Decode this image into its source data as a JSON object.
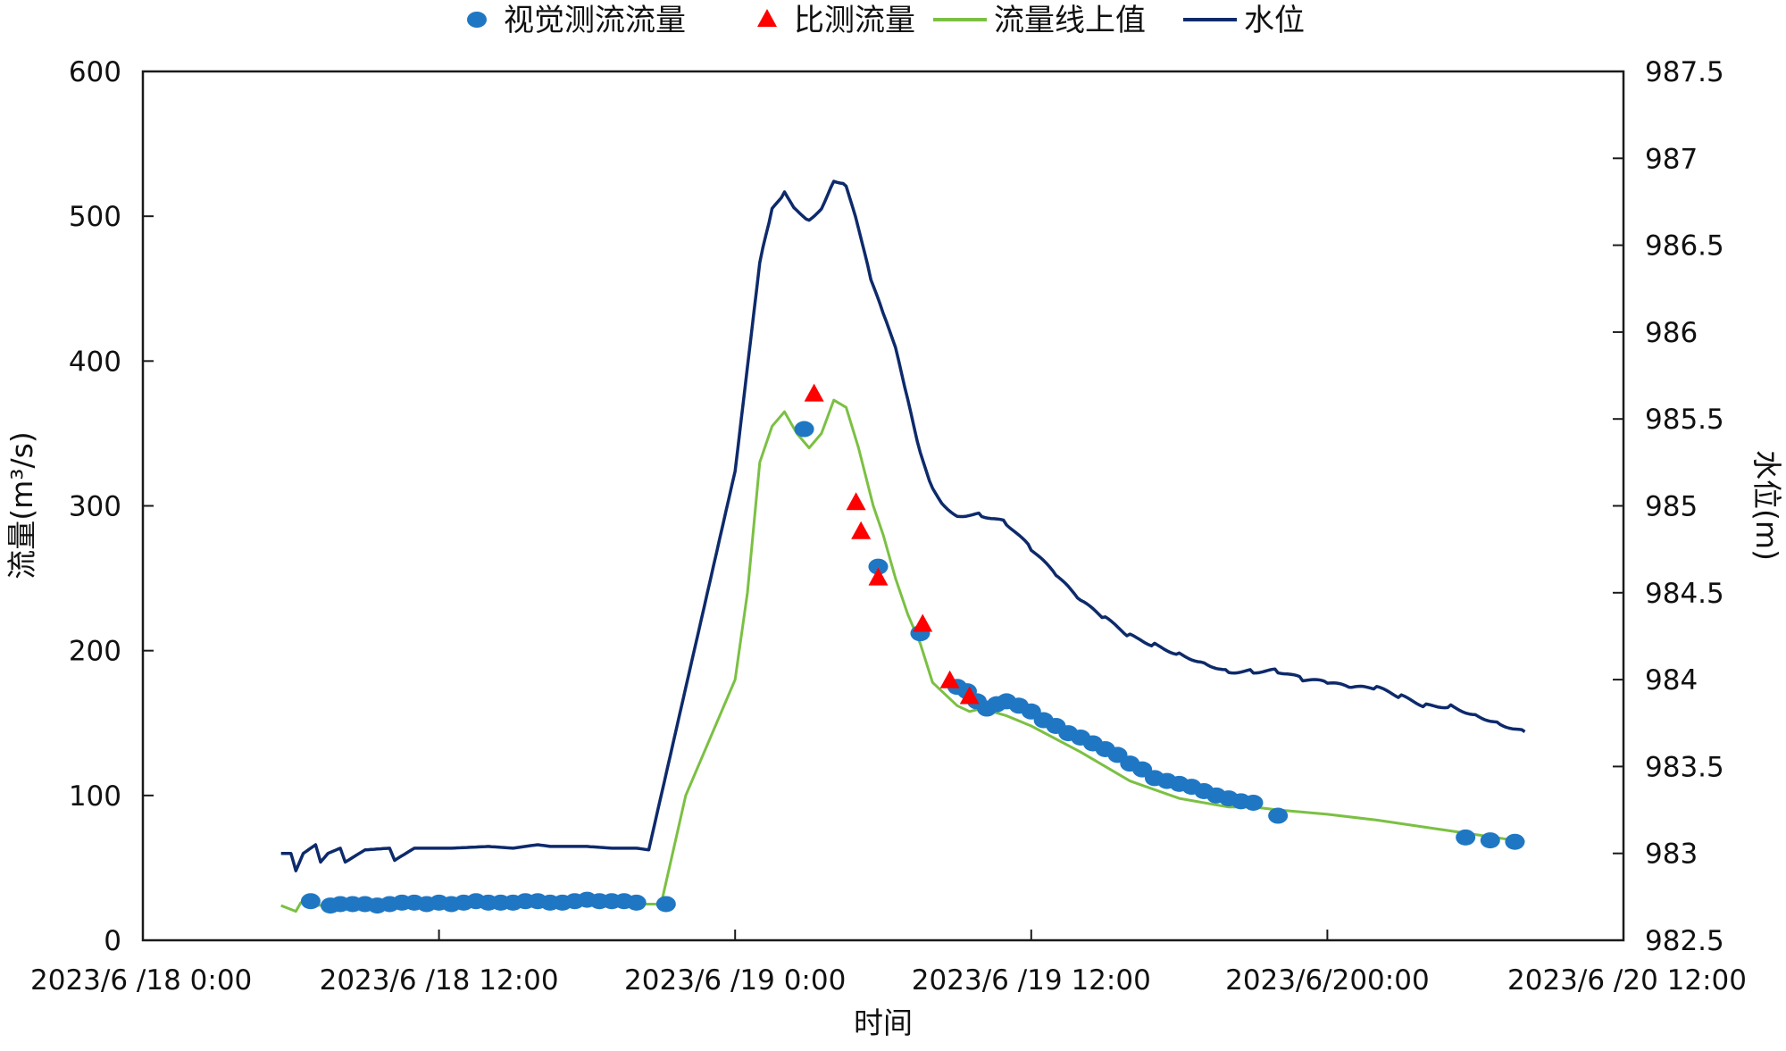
{
  "chart_data": {
    "type": "line",
    "title": "",
    "xlabel": "时间",
    "ylabel": "流量(m³/s)",
    "y2label": "水位(m)",
    "xlim": [
      0,
      60
    ],
    "ylim": [
      0,
      600
    ],
    "y2lim": [
      982.5,
      987.5
    ],
    "x_ticks": [
      {
        "x": 0,
        "label": "2023/6 /18 0:00"
      },
      {
        "x": 12,
        "label": "2023/6 /18 12:00"
      },
      {
        "x": 24,
        "label": "2023/6 /19 0:00"
      },
      {
        "x": 36,
        "label": "2023/6 /19 12:00"
      },
      {
        "x": 48,
        "label": "2023/6/200:00"
      },
      {
        "x": 60,
        "label": "2023/6 /20 12:00"
      }
    ],
    "y_ticks": [
      "0",
      "100",
      "200",
      "300",
      "400",
      "500",
      "600"
    ],
    "y2_ticks": [
      "982.5",
      "983",
      "983.5",
      "984",
      "984.5",
      "985",
      "985.5",
      "986",
      "986.5",
      "987",
      "987.5"
    ],
    "legend": {
      "position": "top",
      "entries": [
        {
          "label": "视觉测流流量",
          "marker": "circle",
          "color": "#1f77c4"
        },
        {
          "label": "比测流量",
          "marker": "triangle",
          "color": "#ff0000"
        },
        {
          "label": "流量线上值",
          "marker": "line",
          "color": "#7bc043"
        },
        {
          "label": "水位",
          "marker": "line",
          "color": "#0d2a6b"
        }
      ]
    },
    "series": [
      {
        "name": "流量线上值",
        "type": "line",
        "axis": "left",
        "color": "#7bc043",
        "x": [
          5.6,
          6.2,
          6.4,
          7.0,
          8.0,
          10.0,
          12.0,
          14.0,
          16.0,
          18.0,
          19.0,
          20.0,
          21.0,
          22.0,
          24.0,
          24.5,
          25.0,
          25.5,
          26.0,
          26.5,
          27.0,
          27.5,
          28.0,
          28.5,
          29.0,
          29.6,
          30.0,
          30.5,
          31.0,
          31.5,
          32.0,
          32.5,
          33.0,
          33.5,
          34.0,
          35.0,
          36.0,
          38.0,
          40.0,
          42.0,
          44.0,
          45.0,
          46.0,
          48.0,
          50.0,
          52.0,
          54.0,
          56.0
        ],
        "y": [
          24,
          20,
          26,
          24,
          25,
          26,
          26,
          27,
          27,
          27,
          26,
          25,
          25,
          100,
          180,
          240,
          330,
          355,
          365,
          350,
          340,
          350,
          373,
          368,
          340,
          300,
          280,
          250,
          225,
          205,
          178,
          170,
          162,
          158,
          160,
          155,
          148,
          130,
          110,
          98,
          92,
          92,
          90,
          87,
          83,
          78,
          73,
          68
        ]
      },
      {
        "name": "水位",
        "type": "line",
        "axis": "right",
        "color": "#0d2a6b",
        "x": [
          5.6,
          6.0,
          6.2,
          6.5,
          7.0,
          7.2,
          7.5,
          8.0,
          8.2,
          9.0,
          10.0,
          10.2,
          11.0,
          12.0,
          12.5,
          14.0,
          15.0,
          16.0,
          16.5,
          18.0,
          19.0,
          20.0,
          20.5,
          24.0,
          24.5,
          25.0,
          25.5,
          26.0,
          26.5,
          27.0,
          27.5,
          28.0,
          28.5,
          29.0,
          29.5,
          30.0,
          30.5,
          31.0,
          31.5,
          32.0,
          32.5,
          33.0,
          34.0,
          35.0,
          36.0,
          37.0,
          38.0,
          39.0,
          40.0,
          41.0,
          42.0,
          43.0,
          44.0,
          45.0,
          46.0,
          47.0,
          48.0,
          49.0,
          50.0,
          51.0,
          52.0,
          53.0,
          54.0,
          55.0,
          56.0
        ],
        "y": [
          983.0,
          983.0,
          982.9,
          983.0,
          983.05,
          982.95,
          983.0,
          983.03,
          982.95,
          983.02,
          983.03,
          982.96,
          983.03,
          983.03,
          983.03,
          983.04,
          983.03,
          983.05,
          983.04,
          983.04,
          983.03,
          983.03,
          983.02,
          985.2,
          985.8,
          986.4,
          986.7,
          986.8,
          986.7,
          986.65,
          986.72,
          986.88,
          986.85,
          986.6,
          986.3,
          986.1,
          985.9,
          985.6,
          985.3,
          985.1,
          985.0,
          984.95,
          984.95,
          984.9,
          984.75,
          984.6,
          984.45,
          984.35,
          984.25,
          984.2,
          984.15,
          984.1,
          984.05,
          984.05,
          984.05,
          984.0,
          983.98,
          983.95,
          983.95,
          983.9,
          983.85,
          983.85,
          983.8,
          983.75,
          983.7
        ]
      },
      {
        "name": "视觉测流流量",
        "type": "scatter",
        "axis": "left",
        "marker": "circle",
        "color": "#1f77c4",
        "x": [
          6.8,
          7.6,
          8.0,
          8.5,
          9.0,
          9.5,
          10.0,
          10.5,
          11.0,
          11.5,
          12.0,
          12.5,
          13.0,
          13.5,
          14.0,
          14.5,
          15.0,
          15.5,
          16.0,
          16.5,
          17.0,
          17.5,
          18.0,
          18.5,
          19.0,
          19.5,
          20.0,
          21.2,
          26.8,
          29.8,
          31.5,
          33.0,
          33.4,
          33.8,
          34.2,
          34.6,
          35.0,
          35.5,
          36.0,
          36.5,
          37.0,
          37.5,
          38.0,
          38.5,
          39.0,
          39.5,
          40.0,
          40.5,
          41.0,
          41.5,
          42.0,
          42.5,
          43.0,
          43.5,
          44.0,
          44.5,
          45.0,
          46.0,
          53.6,
          54.6,
          55.6
        ],
        "y": [
          27,
          24,
          25,
          25,
          25,
          24,
          25,
          26,
          26,
          25,
          26,
          25,
          26,
          27,
          26,
          26,
          26,
          27,
          27,
          26,
          26,
          27,
          28,
          27,
          27,
          27,
          26,
          25,
          353,
          258,
          212,
          175,
          172,
          165,
          160,
          163,
          165,
          162,
          158,
          152,
          148,
          143,
          140,
          136,
          132,
          128,
          122,
          118,
          112,
          110,
          108,
          106,
          103,
          100,
          98,
          96,
          95,
          86,
          71,
          69,
          68
        ]
      },
      {
        "name": "比测流量",
        "type": "scatter",
        "axis": "left",
        "marker": "triangle",
        "color": "#ff0000",
        "x": [
          27.2,
          28.9,
          29.1,
          29.8,
          31.6,
          32.7,
          33.5
        ],
        "y": [
          377,
          302,
          282,
          250,
          218,
          179,
          168
        ]
      }
    ]
  }
}
